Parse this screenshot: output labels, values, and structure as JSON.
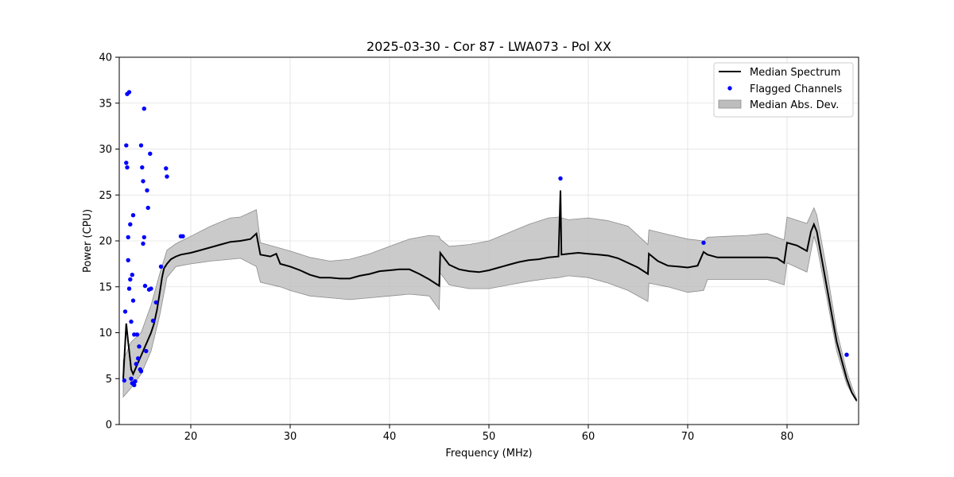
{
  "chart_data": {
    "type": "line",
    "title": "2025-03-30 - Cor 87 - LWA073 - Pol XX",
    "xlabel": "Frequency (MHz)",
    "ylabel": "Power (CPU)",
    "xlim": [
      12.8,
      87.2
    ],
    "ylim": [
      0,
      40
    ],
    "xticks": [
      20,
      30,
      40,
      50,
      60,
      70,
      80
    ],
    "yticks": [
      0,
      5,
      10,
      15,
      20,
      25,
      30,
      35,
      40
    ],
    "grid": true,
    "legend_position": "top-right",
    "legend": [
      "Median Spectrum",
      "Flagged Channels",
      "Median Abs. Dev."
    ],
    "colors": {
      "median": "#000000",
      "flagged": "#0000ff",
      "band": "#bdbdbd",
      "band_edge": "#8c8c8c"
    },
    "series": [
      {
        "name": "Median Spectrum",
        "x": [
          13.2,
          13.5,
          13.7,
          13.9,
          14.0,
          14.2,
          14.4,
          14.6,
          14.8,
          15.0,
          15.2,
          15.4,
          15.6,
          15.8,
          16.0,
          16.3,
          16.6,
          16.9,
          17.1,
          17.3,
          17.6,
          18.0,
          18.5,
          19.0,
          20,
          21,
          22,
          23,
          24,
          25,
          26,
          26.6,
          27,
          28,
          28.6,
          29,
          30,
          31,
          32,
          33,
          34,
          35,
          36,
          37,
          38,
          39,
          40,
          41,
          42,
          43,
          44,
          45,
          45.1,
          46,
          47,
          48,
          49,
          50,
          51,
          52,
          53,
          54,
          55,
          56,
          57,
          57.2,
          57.3,
          58,
          59,
          60,
          61,
          62,
          63,
          64,
          65,
          66,
          66.1,
          67,
          68,
          69,
          70,
          71,
          71.6,
          72,
          73,
          74,
          75,
          76,
          77,
          78,
          79,
          79.7,
          80,
          81,
          82,
          82.4,
          82.7,
          83,
          84,
          85,
          86,
          86.5,
          87.0
        ],
        "y": [
          5.0,
          11.0,
          9.0,
          7.0,
          6.0,
          5.5,
          6.0,
          6.5,
          7.0,
          7.5,
          8.0,
          8.5,
          9.0,
          9.5,
          10.0,
          11.0,
          12.5,
          14.5,
          16.0,
          17.0,
          17.5,
          18.0,
          18.3,
          18.5,
          18.7,
          19.0,
          19.3,
          19.6,
          19.9,
          20.0,
          20.2,
          20.8,
          18.5,
          18.3,
          18.6,
          17.5,
          17.2,
          16.8,
          16.3,
          16.0,
          16.0,
          15.9,
          15.9,
          16.2,
          16.4,
          16.7,
          16.8,
          16.9,
          16.9,
          16.4,
          15.8,
          15.1,
          18.7,
          17.4,
          16.9,
          16.7,
          16.6,
          16.8,
          17.1,
          17.4,
          17.7,
          17.9,
          18.0,
          18.2,
          18.3,
          25.5,
          18.5,
          18.6,
          18.7,
          18.6,
          18.5,
          18.4,
          18.1,
          17.6,
          17.1,
          16.4,
          18.6,
          17.8,
          17.3,
          17.2,
          17.1,
          17.3,
          18.8,
          18.5,
          18.2,
          18.2,
          18.2,
          18.2,
          18.2,
          18.2,
          18.1,
          17.6,
          19.8,
          19.5,
          18.9,
          21.0,
          21.8,
          21.0,
          15.0,
          9.0,
          5.0,
          3.5,
          2.6
        ]
      },
      {
        "name": "Median Abs. Dev.",
        "x": [
          13.2,
          14.0,
          15.0,
          16.0,
          16.9,
          17.6,
          18.5,
          20,
          22,
          24,
          25,
          26.6,
          27,
          29,
          30,
          32,
          34,
          36,
          38,
          40,
          42,
          44,
          45,
          45.1,
          46,
          48,
          50,
          52,
          54,
          56,
          57,
          58,
          60,
          62,
          64,
          66,
          66.1,
          68,
          70,
          71.6,
          72,
          74,
          76,
          78,
          79.7,
          80,
          82,
          82.7,
          83,
          84,
          85,
          86,
          86.5,
          87.0
        ],
        "low": [
          3.0,
          4.0,
          5.5,
          8.0,
          12.0,
          16.0,
          17.2,
          17.5,
          17.8,
          18.0,
          18.1,
          17.2,
          15.5,
          15.0,
          14.6,
          14.0,
          13.8,
          13.6,
          13.8,
          14.0,
          14.2,
          14.0,
          12.5,
          16.5,
          15.2,
          14.8,
          14.8,
          15.2,
          15.6,
          15.9,
          16.0,
          16.2,
          16.0,
          15.4,
          14.6,
          13.4,
          15.4,
          15.0,
          14.4,
          14.6,
          15.8,
          15.8,
          15.8,
          15.8,
          15.2,
          17.6,
          16.6,
          20.5,
          19.5,
          13.8,
          8.0,
          4.4,
          3.4,
          2.5
        ],
        "high": [
          7.0,
          9.0,
          10.0,
          13.0,
          16.5,
          19.0,
          19.7,
          20.5,
          21.6,
          22.5,
          22.6,
          23.4,
          19.8,
          19.2,
          18.9,
          18.2,
          17.8,
          18.0,
          18.6,
          19.4,
          20.2,
          20.6,
          20.5,
          20.2,
          19.4,
          19.6,
          20.0,
          20.9,
          21.8,
          22.5,
          22.6,
          22.3,
          22.5,
          22.2,
          21.6,
          19.6,
          21.2,
          20.7,
          20.2,
          20.0,
          20.4,
          20.5,
          20.6,
          20.8,
          20.1,
          22.6,
          21.9,
          23.6,
          22.8,
          16.8,
          10.2,
          5.8,
          4.2,
          2.8
        ]
      },
      {
        "name": "Flagged Channels",
        "x": [
          13.3,
          13.4,
          13.5,
          13.5,
          13.6,
          13.6,
          13.7,
          13.7,
          13.8,
          13.8,
          13.9,
          13.9,
          14.0,
          14.0,
          14.1,
          14.1,
          14.2,
          14.2,
          14.3,
          14.3,
          14.4,
          14.5,
          14.6,
          14.7,
          14.8,
          14.9,
          15.0,
          15.0,
          15.1,
          15.2,
          15.2,
          15.3,
          15.3,
          15.4,
          15.5,
          15.6,
          15.7,
          15.8,
          15.9,
          16.0,
          16.2,
          16.5,
          17.0,
          17.5,
          17.6,
          19.0,
          19.2,
          57.2,
          71.6,
          86.0
        ],
        "y": [
          4.8,
          12.3,
          28.5,
          30.4,
          28.0,
          36.0,
          20.4,
          17.9,
          36.2,
          14.8,
          15.8,
          21.8,
          11.2,
          5.0,
          16.3,
          4.5,
          22.8,
          13.5,
          9.8,
          4.3,
          4.7,
          6.6,
          9.8,
          7.2,
          8.5,
          6.0,
          5.8,
          30.4,
          28.0,
          26.5,
          19.7,
          34.4,
          20.4,
          15.1,
          8.0,
          25.5,
          23.6,
          14.7,
          29.5,
          14.8,
          11.3,
          13.3,
          17.2,
          27.9,
          27.0,
          20.5,
          20.5,
          26.8,
          19.8,
          7.6
        ]
      }
    ]
  }
}
